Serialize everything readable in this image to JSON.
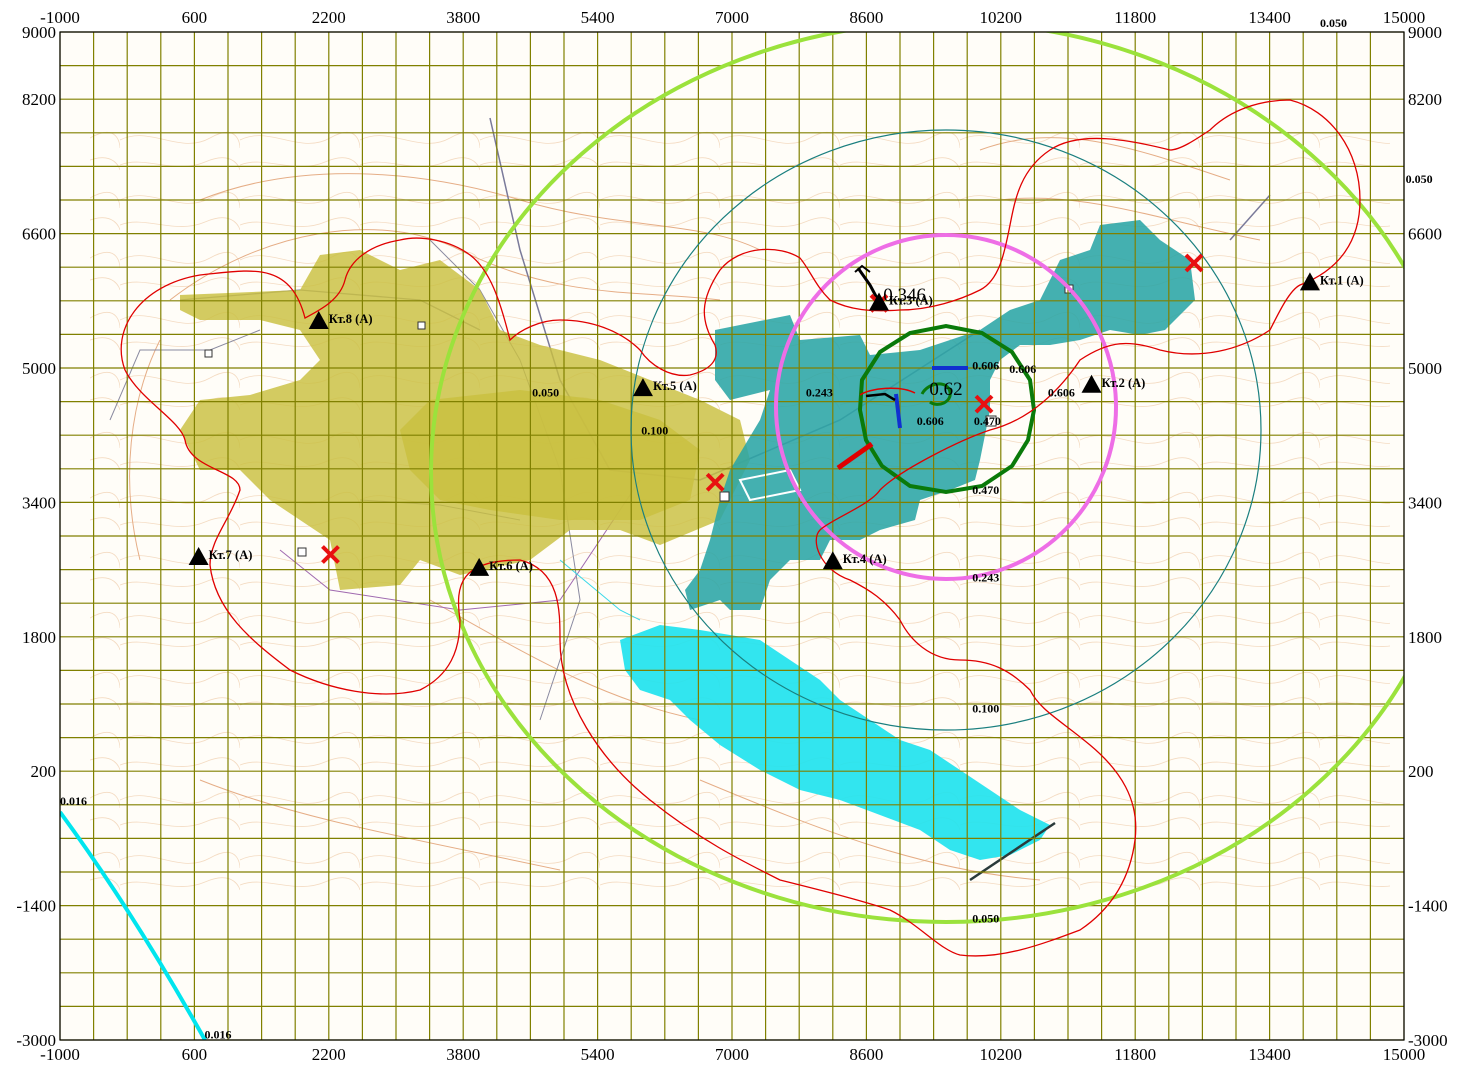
{
  "axes": {
    "x_ticks": [
      "-1000",
      "600",
      "2200",
      "3800",
      "5400",
      "7000",
      "8600",
      "10200",
      "11800",
      "13400",
      "15000"
    ],
    "y_ticks": [
      "9000",
      "8200",
      "6600",
      "5000",
      "3400",
      "1800",
      "200",
      "-1400",
      "-3000"
    ],
    "x_range": [
      -1000,
      15000
    ],
    "y_range": [
      -3000,
      9000
    ],
    "grid_step": 400,
    "grid_color": "#808000"
  },
  "colors": {
    "green_zone": "#c9c03f",
    "teal_zone": "#2aa5a5",
    "water": "#21e3ee",
    "contour_lines": "#e0a070",
    "isoline_red": "#e00000",
    "isoline_light_green": "#9be23c",
    "isoline_cyan": "#00e5ee",
    "isoline_magenta": "#ee6ee6",
    "isoline_dark_green": "#0a7a0a",
    "isoline_teal": "#1a7f7f"
  },
  "control_points": [
    {
      "id": "kt1",
      "label": "Кт.1 (А)",
      "x": 13880,
      "y": 6020
    },
    {
      "id": "kt2",
      "label": "Кт.2 (А)",
      "x": 11280,
      "y": 4800
    },
    {
      "id": "kt4",
      "label": "Кт.4 (А)",
      "x": 8200,
      "y": 2700
    },
    {
      "id": "kt5",
      "label": "Кт.5 (А)",
      "x": 5940,
      "y": 4760
    },
    {
      "id": "kt6",
      "label": "Кт.6 (А)",
      "x": 3990,
      "y": 2620
    },
    {
      "id": "kt7",
      "label": "Кт.7 (А)",
      "x": 650,
      "y": 2750
    },
    {
      "id": "kt8",
      "label": "Кт.8 (А)",
      "x": 2080,
      "y": 5560
    },
    {
      "id": "kt3",
      "label": "Кт.3 (А)",
      "x": 8750,
      "y": 5780
    }
  ],
  "sources": [
    {
      "x": 8750,
      "y": 5770
    },
    {
      "x": 12500,
      "y": 6250
    },
    {
      "x": 10000,
      "y": 4570
    },
    {
      "x": 6800,
      "y": 3640
    },
    {
      "x": 2220,
      "y": 2780
    }
  ],
  "isoline_labels": [
    {
      "text": "0.050",
      "x": 4620,
      "y": 4660
    },
    {
      "text": "0.100",
      "x": 5920,
      "y": 4210
    },
    {
      "text": "0.243",
      "x": 7880,
      "y": 4660
    },
    {
      "text": "0.243",
      "x": 9860,
      "y": 2460
    },
    {
      "text": "0.100",
      "x": 9860,
      "y": 900
    },
    {
      "text": "0.050",
      "x": 9860,
      "y": -1600
    },
    {
      "text": "0.470",
      "x": 9860,
      "y": 3500
    },
    {
      "text": "0.606",
      "x": 9860,
      "y": 4980
    },
    {
      "text": "0.606",
      "x": 10300,
      "y": 4940
    },
    {
      "text": "0.606",
      "x": 10760,
      "y": 4660
    },
    {
      "text": "0.606",
      "x": 9200,
      "y": 4320
    },
    {
      "text": "0.470",
      "x": 9880,
      "y": 4320
    },
    {
      "text": "0.050",
      "x": 14000,
      "y": 9060
    },
    {
      "text": "0.050",
      "x": 15020,
      "y": 7200
    },
    {
      "text": "0.016",
      "x": -1000,
      "y": -200
    },
    {
      "text": "0.016",
      "x": 720,
      "y": -2980
    }
  ],
  "big_labels": [
    {
      "text": "0.346",
      "x": 8800,
      "y": 5800
    },
    {
      "text": "0.62",
      "x": 9350,
      "y": 4680
    }
  ]
}
